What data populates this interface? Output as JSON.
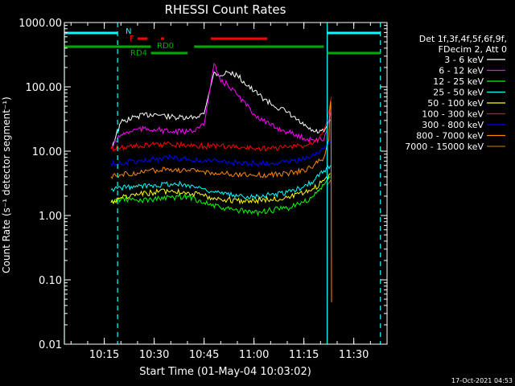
{
  "chart_data": {
    "type": "line",
    "title": "RHESSI Count Rates",
    "xlabel": "Start Time (01-May-04 10:03:02)",
    "ylabel": "Count Rate (s⁻¹ detector segment⁻¹)",
    "y_scale": "log",
    "ylim": [
      0.01,
      1000
    ],
    "xlim": [
      "10:03",
      "11:40"
    ],
    "x_ticks": [
      "10:15",
      "10:30",
      "10:45",
      "11:00",
      "11:15",
      "11:30"
    ],
    "y_ticks": [
      "0.01",
      "0.10",
      "1.00",
      "10.00",
      "100.00",
      "1000.00"
    ],
    "grid": false,
    "legend_position": "right",
    "legend_header": [
      "Det 1f,3f,4f,5f,6f,9f,",
      "FDecim 2, Att 0"
    ],
    "series": [
      {
        "name": "3 - 6 keV",
        "color": "#ffffff",
        "x": [
          "10:17",
          "10:20",
          "10:25",
          "10:30",
          "10:35",
          "10:40",
          "10:45",
          "10:48",
          "10:50",
          "10:52",
          "10:55",
          "11:00",
          "11:05",
          "11:10",
          "11:15",
          "11:18",
          "11:21",
          "11:23"
        ],
        "y": [
          11,
          28,
          35,
          38,
          34,
          32,
          38,
          170,
          150,
          170,
          150,
          85,
          55,
          40,
          25,
          20,
          20,
          30
        ]
      },
      {
        "name": "6 - 12 keV",
        "color": "#ff00ff",
        "x": [
          "10:17",
          "10:20",
          "10:25",
          "10:30",
          "10:35",
          "10:40",
          "10:45",
          "10:48",
          "10:50",
          "10:52",
          "10:55",
          "11:00",
          "11:05",
          "11:10",
          "11:15",
          "11:18",
          "11:21",
          "11:23"
        ],
        "y": [
          11,
          18,
          22,
          22,
          20,
          20,
          25,
          230,
          120,
          110,
          75,
          38,
          25,
          20,
          16,
          15,
          15,
          40
        ]
      },
      {
        "name": "12 - 25 keV",
        "color": "#00ff00",
        "x": [
          "10:17",
          "10:20",
          "10:25",
          "10:30",
          "10:35",
          "10:40",
          "10:45",
          "10:50",
          "10:55",
          "11:00",
          "11:05",
          "11:10",
          "11:15",
          "11:18",
          "11:21",
          "11:23"
        ],
        "y": [
          1.6,
          1.8,
          1.7,
          1.8,
          1.9,
          2.0,
          1.6,
          1.3,
          1.2,
          1.1,
          1.2,
          1.3,
          1.6,
          2.0,
          3.0,
          4.0
        ]
      },
      {
        "name": "25 - 50 keV",
        "color": "#00ffff",
        "x": [
          "10:17",
          "10:20",
          "10:25",
          "10:30",
          "10:35",
          "10:40",
          "10:45",
          "10:50",
          "10:55",
          "11:00",
          "11:05",
          "11:10",
          "11:15",
          "11:18",
          "11:21",
          "11:23"
        ],
        "y": [
          2.5,
          2.7,
          2.8,
          3.0,
          3.1,
          3.0,
          2.6,
          2.2,
          2.0,
          2.0,
          2.1,
          2.3,
          2.8,
          3.5,
          5.0,
          6.0
        ]
      },
      {
        "name": "50 - 100 keV",
        "color": "#ffff00",
        "x": [
          "10:17",
          "10:20",
          "10:25",
          "10:30",
          "10:35",
          "10:40",
          "10:45",
          "10:50",
          "10:55",
          "11:00",
          "11:05",
          "11:10",
          "11:15",
          "11:18",
          "11:21",
          "11:23"
        ],
        "y": [
          1.6,
          1.9,
          2.1,
          2.3,
          2.4,
          2.3,
          2.0,
          1.8,
          1.7,
          1.7,
          1.8,
          1.9,
          2.2,
          2.6,
          3.5,
          4.5
        ]
      },
      {
        "name": "100 - 300 keV",
        "color": "#ff0000",
        "x": [
          "10:17",
          "10:20",
          "10:25",
          "10:30",
          "10:35",
          "10:40",
          "10:45",
          "10:50",
          "10:55",
          "11:00",
          "11:05",
          "11:10",
          "11:15",
          "11:18",
          "11:20",
          "11:22",
          "11:23",
          "11:23.3"
        ],
        "y": [
          11,
          11.5,
          12,
          12.5,
          13,
          12.5,
          12,
          12,
          11.5,
          11,
          11,
          11.5,
          12,
          14,
          18,
          30,
          60,
          70
        ]
      },
      {
        "name": "300 - 800 keV",
        "color": "#0000ff",
        "x": [
          "10:17",
          "10:20",
          "10:25",
          "10:30",
          "10:35",
          "10:40",
          "10:45",
          "10:50",
          "10:55",
          "11:00",
          "11:05",
          "11:10",
          "11:15",
          "11:18",
          "11:21",
          "11:23"
        ],
        "y": [
          6.5,
          6.5,
          7,
          7.5,
          8,
          7.5,
          7,
          7,
          6.5,
          6.5,
          6.5,
          7,
          7.5,
          9,
          11,
          14
        ]
      },
      {
        "name": "800 - 7000 keV",
        "color": "#ff8800",
        "x": [
          "10:17",
          "10:20",
          "10:25",
          "10:30",
          "10:35",
          "10:40",
          "10:45",
          "10:50",
          "10:55",
          "11:00",
          "11:05",
          "11:10",
          "11:15",
          "11:18",
          "11:21",
          "11:22.5",
          "11:22.8",
          "11:23.1",
          "11:23.2",
          "11:23.3"
        ],
        "y": [
          4,
          4.3,
          4.6,
          5,
          5.3,
          5,
          4.8,
          4.5,
          4.3,
          4.2,
          4.3,
          4.5,
          5,
          6,
          8,
          15,
          45,
          60,
          10,
          0.045
        ]
      },
      {
        "name": "7000 - 15000 keV",
        "color": "#aa6600",
        "x": [
          "11:22",
          "11:22.5",
          "11:23",
          "11:23.3"
        ],
        "y": [
          3,
          3.2,
          3.5,
          3.8
        ]
      }
    ],
    "attenuator_bars": [
      {
        "label": "N",
        "color": "#00ffff",
        "row": "top",
        "segments": [
          [
            "10:03",
            "10:19"
          ],
          [
            "11:22",
            "11:38"
          ]
        ]
      },
      {
        "label": "F",
        "color": "#ff0000",
        "row": "flare",
        "segments": [
          [
            "10:25",
            "10:28"
          ],
          [
            "10:32",
            "10:33"
          ],
          [
            "10:47",
            "11:04"
          ]
        ]
      },
      {
        "label": "RD0",
        "color": "#00aa00",
        "row": "mid",
        "segments": [
          [
            "10:03",
            "10:29"
          ],
          [
            "10:42",
            "11:21"
          ]
        ]
      },
      {
        "label": "RD4",
        "color": "#00aa00",
        "row": "low",
        "segments": [
          [
            "10:29",
            "10:40"
          ],
          [
            "11:22",
            "11:38"
          ]
        ]
      }
    ],
    "vertical_markers": [
      {
        "x": "10:03",
        "color": "#00ffff",
        "style": "solid"
      },
      {
        "x": "10:19",
        "color": "#00ffff",
        "style": "dashed"
      },
      {
        "x": "11:22",
        "color": "#00ffff",
        "style": "solid"
      },
      {
        "x": "11:38",
        "color": "#00ffff",
        "style": "dashed"
      }
    ]
  },
  "footer": {
    "timestamp": "17-Oct-2021 04:53"
  }
}
